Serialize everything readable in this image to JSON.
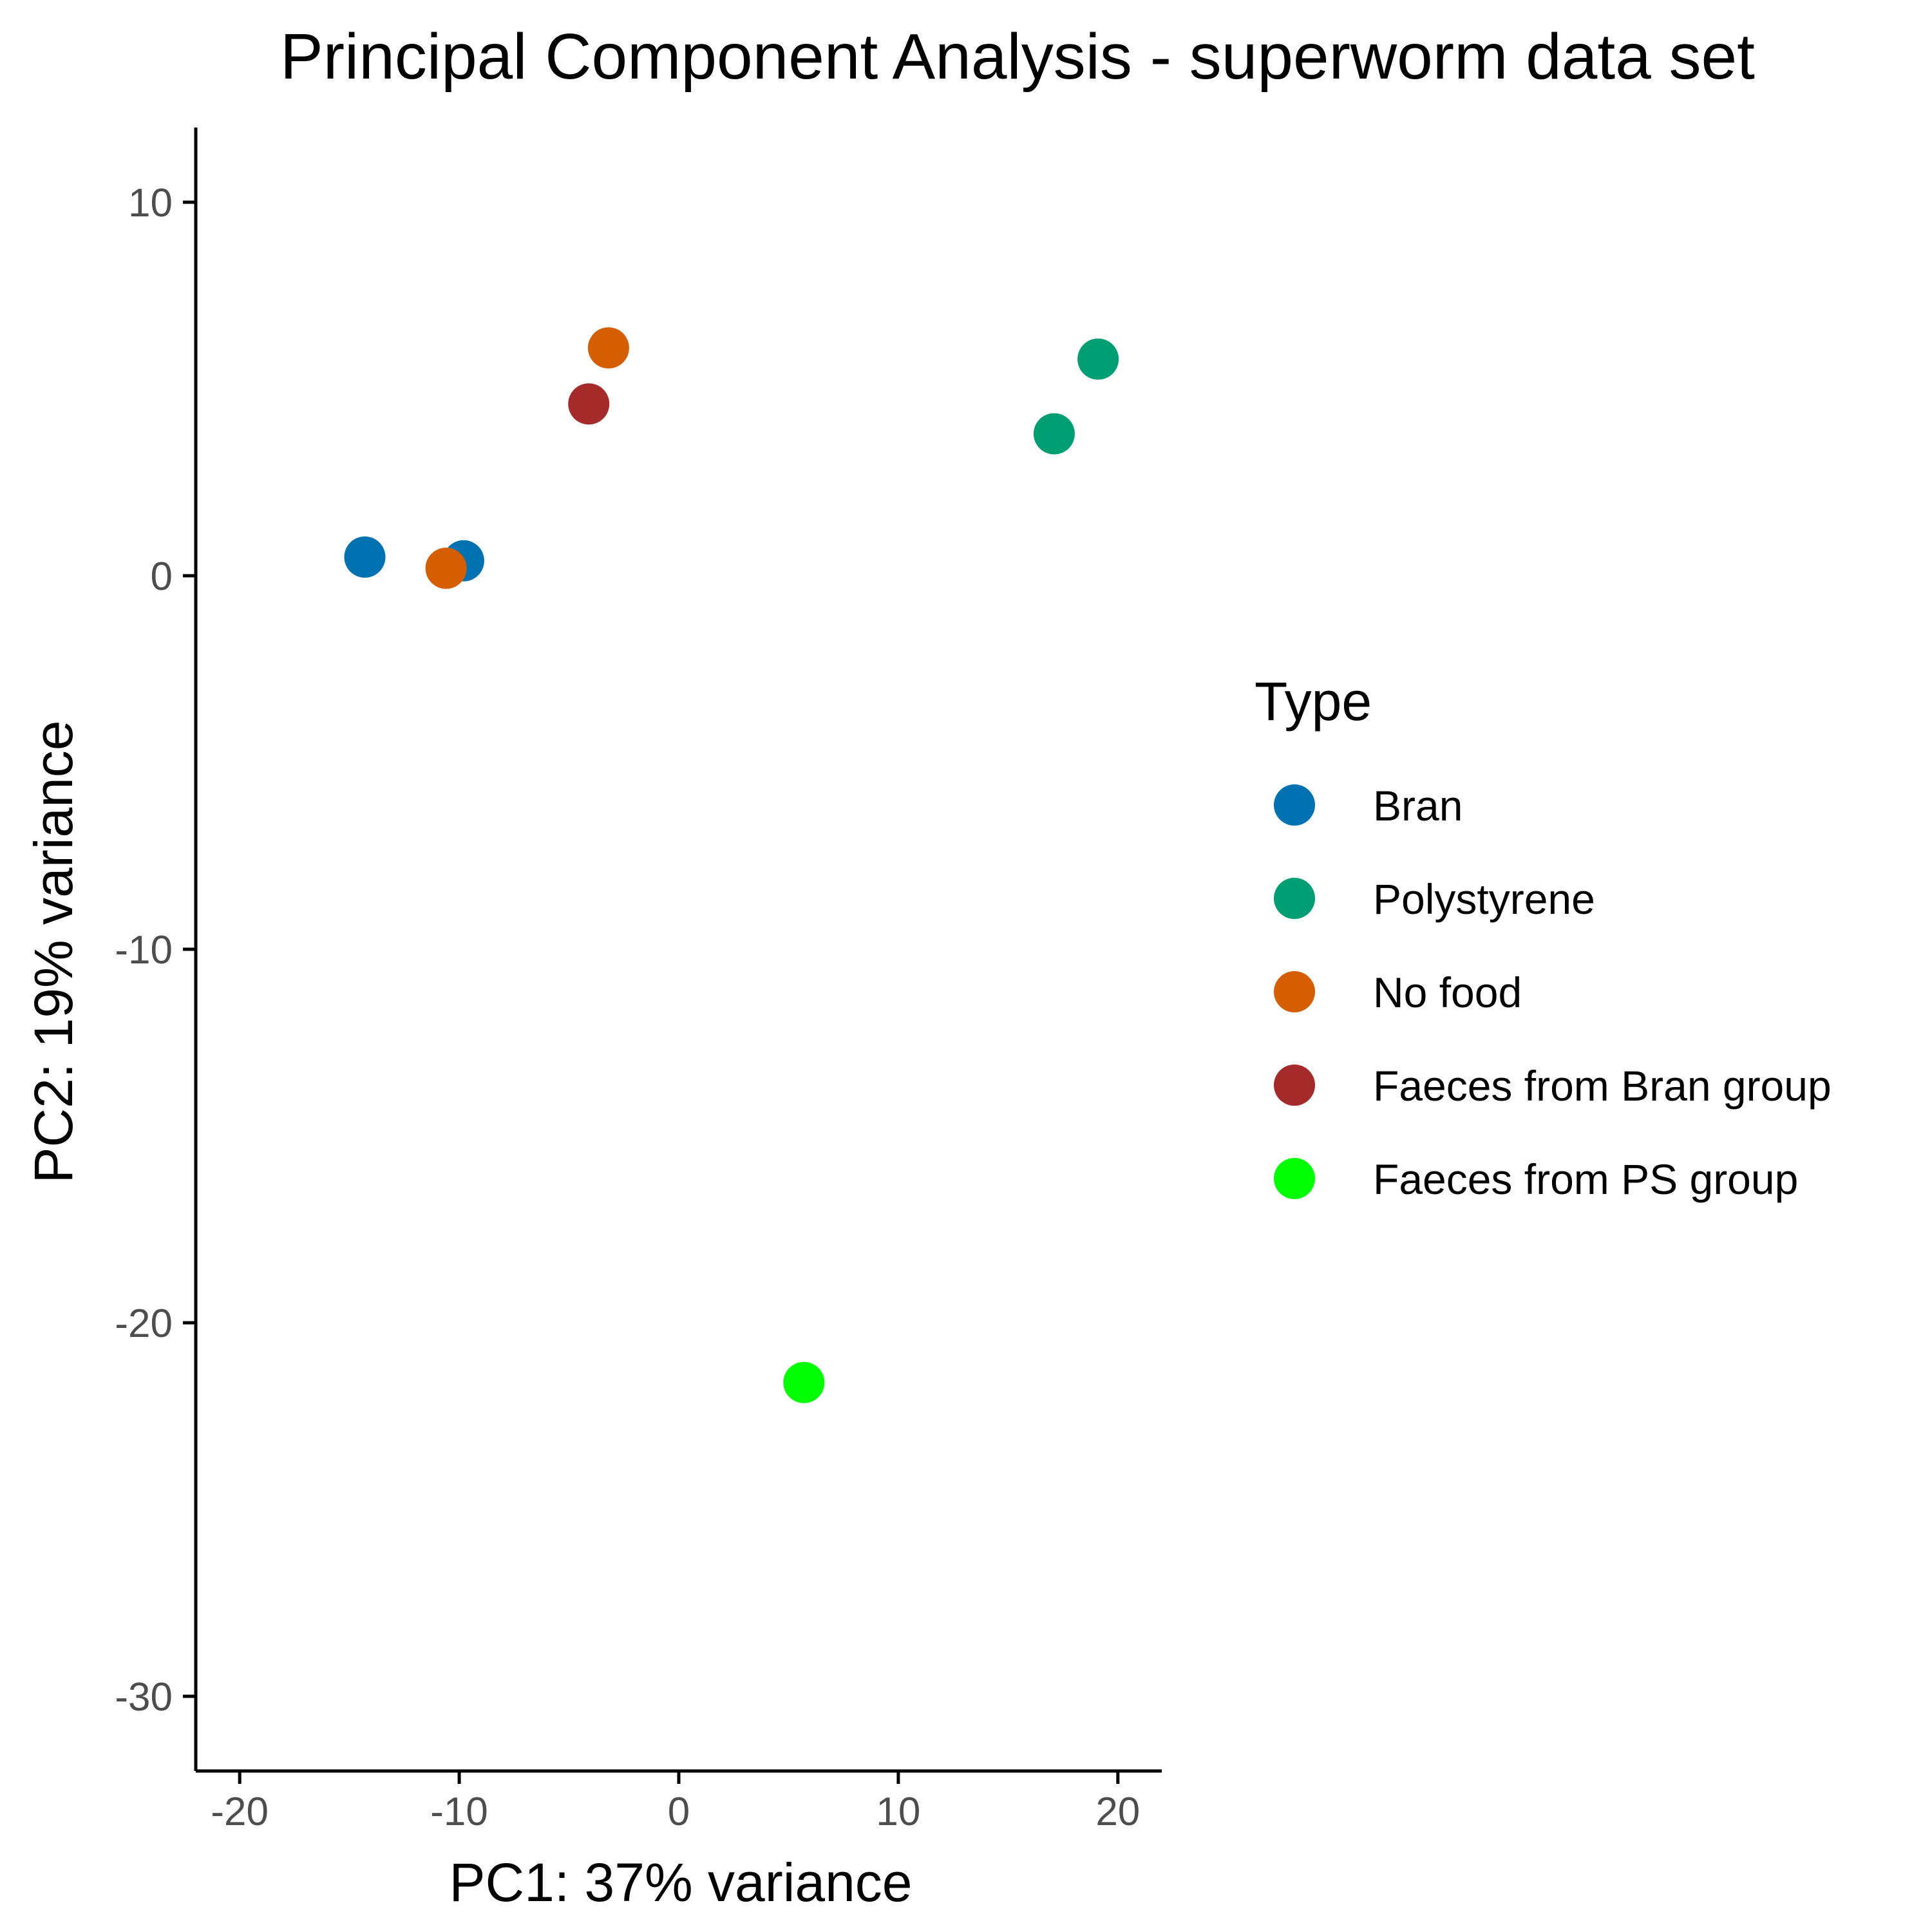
{
  "chart_data": {
    "type": "scatter",
    "title": "Principal Component Analysis - superworm data set",
    "xlabel": "PC1: 37% variance",
    "ylabel": "PC2: 19% variance",
    "xlim": [
      -22,
      22
    ],
    "ylim": [
      -32,
      12
    ],
    "x_ticks": [
      "-20",
      "-10",
      "0",
      "10",
      "20"
    ],
    "x_tick_values": [
      -20,
      -10,
      0,
      10,
      20
    ],
    "y_ticks": [
      "10",
      "0",
      "-10",
      "-20",
      "-30"
    ],
    "y_tick_values": [
      10,
      0,
      -10,
      -20,
      -30
    ],
    "grid": false,
    "legend": {
      "title": "Type",
      "position": "right"
    },
    "series": [
      {
        "name": "Bran",
        "color": "#0072B2",
        "points": [
          {
            "x": -14.3,
            "y": 0.5
          },
          {
            "x": -9.8,
            "y": 0.4
          }
        ]
      },
      {
        "name": "Polystyrene",
        "color": "#009E73",
        "points": [
          {
            "x": 19.1,
            "y": 5.8
          },
          {
            "x": 17.1,
            "y": 3.8
          }
        ]
      },
      {
        "name": "No food",
        "color": "#D55E00",
        "points": [
          {
            "x": -3.2,
            "y": 6.1
          },
          {
            "x": -10.6,
            "y": 0.2
          }
        ]
      },
      {
        "name": "Faeces from Bran group",
        "color": "#A52A2A",
        "points": [
          {
            "x": -4.1,
            "y": 4.6
          }
        ]
      },
      {
        "name": "Faeces from PS group",
        "color": "#00FF00",
        "points": [
          {
            "x": 5.7,
            "y": -21.6
          }
        ]
      }
    ]
  }
}
